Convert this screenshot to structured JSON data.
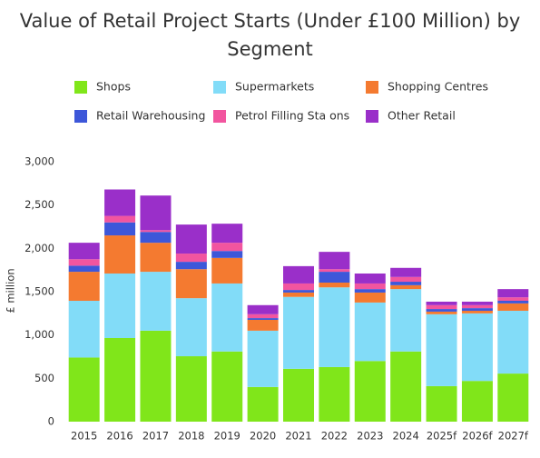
{
  "chart_data": {
    "type": "stacked-bar",
    "title": "Value of Retail Project Starts (Under £100 Million) by Segment",
    "y_label": "£ million",
    "categories": [
      "2015",
      "2016",
      "2017",
      "2018",
      "2019",
      "2020",
      "2021",
      "2022",
      "2023",
      "2024",
      "2025f",
      "2026f",
      "2027f"
    ],
    "series": [
      {
        "name": "Shops",
        "color": "#80e61a",
        "values": [
          740,
          965,
          1050,
          755,
          810,
          400,
          610,
          630,
          700,
          810,
          410,
          470,
          555
        ]
      },
      {
        "name": "Supermarkets",
        "color": "#82dcf8",
        "values": [
          655,
          745,
          680,
          670,
          785,
          650,
          830,
          920,
          675,
          720,
          830,
          780,
          725
        ]
      },
      {
        "name": "Shopping Centres",
        "color": "#f47a30",
        "values": [
          335,
          440,
          335,
          335,
          295,
          125,
          50,
          55,
          115,
          45,
          30,
          30,
          85
        ]
      },
      {
        "name": "Retail Warehousing",
        "color": "#3d57d9",
        "values": [
          70,
          150,
          125,
          85,
          80,
          20,
          30,
          125,
          40,
          40,
          30,
          30,
          30
        ]
      },
      {
        "name": "Petrol Filling Sta ons",
        "color": "#f2559f",
        "values": [
          75,
          75,
          20,
          95,
          95,
          45,
          75,
          30,
          65,
          55,
          45,
          35,
          40
        ]
      },
      {
        "name": "Other Retail",
        "color": "#9a2fc9",
        "values": [
          190,
          305,
          400,
          335,
          220,
          105,
          200,
          200,
          115,
          105,
          40,
          40,
          95
        ]
      }
    ],
    "ylim": [
      0,
      3000
    ],
    "yticks": [
      0,
      500,
      {
        "value": 1000,
        "label": "1,000"
      },
      {
        "value": 1500,
        "label": "1,500"
      },
      {
        "value": 2000,
        "label": "2,000"
      },
      {
        "value": 2500,
        "label": "2,500"
      },
      {
        "value": 3000,
        "label": "3,000"
      }
    ],
    "grid": false
  }
}
